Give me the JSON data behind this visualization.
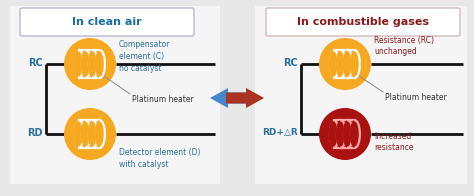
{
  "bg_color": "#e8e8e8",
  "left_title": "In clean air",
  "right_title": "In combustible gases",
  "left_title_color": "#1a6fa8",
  "right_title_color": "#8b1a1a",
  "title_bg": "#ffffff",
  "title_border": "#aaaacc",
  "coil_color_gold": "#f5a820",
  "coil_color_dark_red": "#aa1111",
  "coil_inner_white": "#ffffff",
  "coil_inner_red": "#cc2222",
  "line_color": "#111111",
  "label_color_blue": "#2a6fa0",
  "label_color_red": "#8b1a1a",
  "label_color_black": "#333333",
  "label_color_gray": "#555555",
  "left_rc_label": "RC",
  "left_rd_label": "RD",
  "right_rc_label": "RC",
  "right_rd_label": "RD+△R",
  "comp_label": "Compensator\nelement (C)\nno catalyst",
  "det_label": "Detector element (D)\nwith catalyst",
  "resist_unchanged": "Resistance (RC)\nunchanged",
  "increased_resist": "Increased\nresistance",
  "platinum_heater": "Platinum heater",
  "arrow_blue": "#4488cc",
  "arrow_red": "#aa3322"
}
